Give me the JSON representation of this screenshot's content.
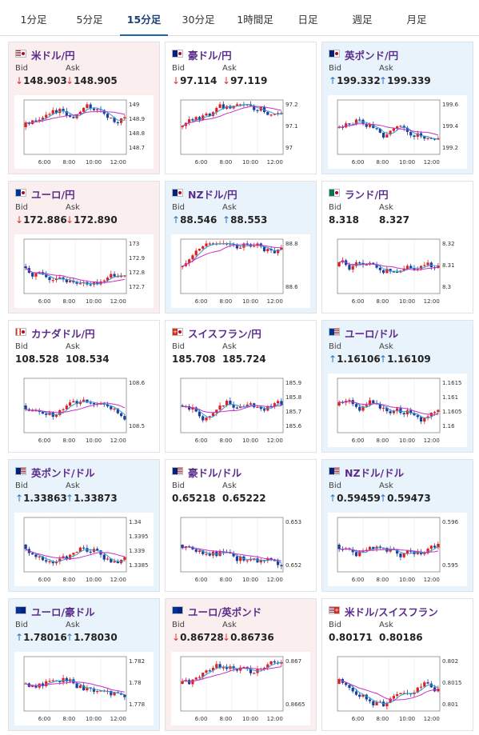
{
  "tabs": [
    {
      "label": "1分足"
    },
    {
      "label": "5分足"
    },
    {
      "label": "15分足",
      "active": true
    },
    {
      "label": "30分足"
    },
    {
      "label": "1時間足"
    },
    {
      "label": "日足"
    },
    {
      "label": "週足"
    },
    {
      "label": "月足"
    }
  ],
  "labels": {
    "bid": "Bid",
    "ask": "Ask"
  },
  "x_ticks": [
    "6:00",
    "8:00",
    "10:00",
    "12:00"
  ],
  "colors": {
    "pink": "#fbeeee",
    "blue": "#e9f3fb",
    "title": "#5a2d8c",
    "down": "#d33333",
    "up": "#2a74c9",
    "candle_up": "#e02020",
    "candle_down": "#1b3f9a",
    "ma_short": "#2a9fd6",
    "ma_long": "#c82fc8"
  },
  "cards": [
    {
      "title": "米ドル/円",
      "flags": [
        "us",
        "jp"
      ],
      "bg": "pink",
      "dir": "down",
      "bid": "148.903",
      "ask": "148.905",
      "yticks": [
        "149",
        "148.9",
        "148.8",
        "148.7"
      ],
      "shape": "usdjpy"
    },
    {
      "title": "豪ドル/円",
      "flags": [
        "au",
        "jp"
      ],
      "bg": "plain",
      "dir": "down",
      "bid": "97.114",
      "ask": "97.119",
      "yticks": [
        "97.2",
        "97.1",
        "97"
      ],
      "shape": "audjpy"
    },
    {
      "title": "英ポンド/円",
      "flags": [
        "gb",
        "jp"
      ],
      "bg": "blue",
      "dir": "up",
      "bid": "199.332",
      "ask": "199.339",
      "yticks": [
        "199.6",
        "199.4",
        "199.2"
      ],
      "shape": "gbpjpy"
    },
    {
      "title": "ユーロ/円",
      "flags": [
        "eu",
        "jp"
      ],
      "bg": "pink",
      "dir": "down",
      "bid": "172.886",
      "ask": "172.890",
      "yticks": [
        "173",
        "172.9",
        "172.8",
        "172.7"
      ],
      "shape": "eurjpy"
    },
    {
      "title": "NZドル/円",
      "flags": [
        "nz",
        "jp"
      ],
      "bg": "blue",
      "dir": "up",
      "bid": "88.546",
      "ask": "88.553",
      "yticks": [
        "88.8",
        "88.6"
      ],
      "shape": "nzdjpy"
    },
    {
      "title": "ランド/円",
      "flags": [
        "za",
        "jp"
      ],
      "bg": "plain",
      "dir": "none",
      "bid": "8.318",
      "ask": "8.327",
      "yticks": [
        "8.32",
        "8.31",
        "8.3"
      ],
      "shape": "zarjpy"
    },
    {
      "title": "カナダドル/円",
      "flags": [
        "ca",
        "jp"
      ],
      "bg": "plain",
      "dir": "none",
      "bid": "108.528",
      "ask": "108.534",
      "yticks": [
        "108.6",
        "108.5"
      ],
      "shape": "cadjpy"
    },
    {
      "title": "スイスフラン/円",
      "flags": [
        "ch",
        "jp"
      ],
      "bg": "plain",
      "dir": "none",
      "bid": "185.708",
      "ask": "185.724",
      "yticks": [
        "185.9",
        "185.8",
        "185.7",
        "185.6"
      ],
      "shape": "chfjpy"
    },
    {
      "title": "ユーロ/ドル",
      "flags": [
        "eu",
        "us"
      ],
      "bg": "blue",
      "dir": "up",
      "bid": "1.16106",
      "ask": "1.16109",
      "yticks": [
        "1.1615",
        "1.161",
        "1.1605",
        "1.16"
      ],
      "shape": "eurusd"
    },
    {
      "title": "英ポンド/ドル",
      "flags": [
        "gb",
        "us"
      ],
      "bg": "blue",
      "dir": "up",
      "bid": "1.33863",
      "ask": "1.33873",
      "yticks": [
        "1.34",
        "1.3395",
        "1.339",
        "1.3385"
      ],
      "shape": "gbpusd"
    },
    {
      "title": "豪ドル/ドル",
      "flags": [
        "au",
        "us"
      ],
      "bg": "plain",
      "dir": "none",
      "bid": "0.65218",
      "ask": "0.65222",
      "yticks": [
        "0.653",
        "0.652"
      ],
      "shape": "audusd"
    },
    {
      "title": "NZドル/ドル",
      "flags": [
        "nz",
        "us"
      ],
      "bg": "blue",
      "dir": "up",
      "bid": "0.59459",
      "ask": "0.59473",
      "yticks": [
        "0.596",
        "0.595"
      ],
      "shape": "nzdusd"
    },
    {
      "title": "ユーロ/豪ドル",
      "flags": [
        "eu",
        "au"
      ],
      "bg": "blue",
      "dir": "up",
      "bid": "1.78016",
      "ask": "1.78030",
      "yticks": [
        "1.782",
        "1.78",
        "1.778"
      ],
      "shape": "euraud"
    },
    {
      "title": "ユーロ/英ポンド",
      "flags": [
        "eu",
        "gb"
      ],
      "bg": "pink",
      "dir": "down",
      "bid": "0.86728",
      "ask": "0.86736",
      "yticks": [
        "0.867",
        "0.8665"
      ],
      "shape": "eurgbp"
    },
    {
      "title": "米ドル/スイスフラン",
      "flags": [
        "us",
        "ch"
      ],
      "bg": "plain",
      "dir": "none",
      "bid": "0.80171",
      "ask": "0.80186",
      "yticks": [
        "0.802",
        "0.8015",
        "0.801"
      ],
      "shape": "usdchf"
    }
  ]
}
